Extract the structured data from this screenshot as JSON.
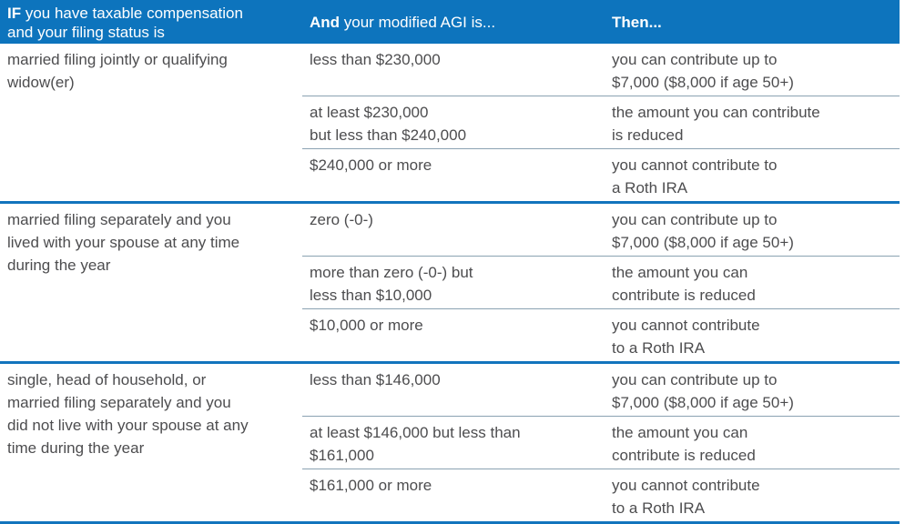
{
  "colors": {
    "header_blue": "#0d74bd",
    "separator_blue": "#1274bd",
    "row_divider_gray": "#8ba2b2",
    "body_text": "#4d4d4f",
    "header_text": "#ffffff"
  },
  "table": {
    "header": {
      "col1_bold": "IF",
      "col1_text": " you have taxable compensation\nand your filing status is",
      "col2_bold": "And",
      "col2_text": " your modified AGI is...",
      "col3_bold": "Then..."
    },
    "groups": [
      {
        "status": "married filing jointly or qualifying\nwidow(er)",
        "rows": [
          {
            "agi": "less than $230,000",
            "then": "you can contribute up to\n$7,000 ($8,000 if age 50+)"
          },
          {
            "agi": "at least $230,000\nbut less than $240,000",
            "then": "the amount you can contribute\nis reduced"
          },
          {
            "agi": "$240,000 or more",
            "then": "you cannot contribute to\na Roth IRA"
          }
        ]
      },
      {
        "status": "married filing separately and you\nlived with your spouse at any time\nduring the year",
        "rows": [
          {
            "agi": "zero (-0-)",
            "then": "you can contribute up to\n$7,000 ($8,000 if age 50+)"
          },
          {
            "agi": "more than zero (-0-) but\nless than $10,000",
            "then": "the amount you can\ncontribute is reduced"
          },
          {
            "agi": "$10,000 or more",
            "then": "you cannot contribute\nto a Roth IRA"
          }
        ]
      },
      {
        "status": "single, head of household, or\nmarried filing separately and you\ndid not live with your spouse at any\ntime during the year",
        "rows": [
          {
            "agi": "less than $146,000",
            "then": "you can contribute up to\n$7,000 ($8,000 if age 50+)"
          },
          {
            "agi": "at least $146,000 but less than\n$161,000",
            "then": "the amount you can\ncontribute is reduced"
          },
          {
            "agi": "$161,000 or more",
            "then": "you cannot contribute\nto a Roth IRA"
          }
        ]
      }
    ]
  }
}
